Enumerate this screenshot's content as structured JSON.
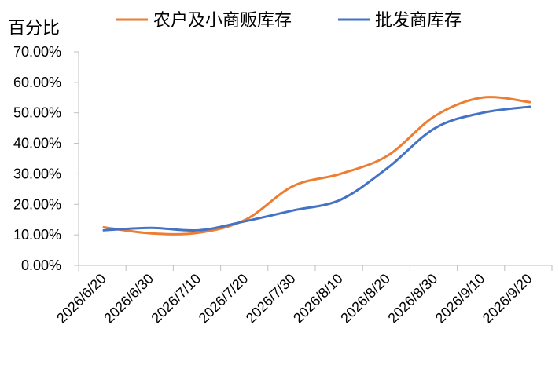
{
  "chart_data": {
    "type": "line",
    "ylabel": "百分比",
    "xlabel": "",
    "ylim": [
      0,
      0.7
    ],
    "yticks": [
      "0.00%",
      "10.00%",
      "20.00%",
      "30.00%",
      "40.00%",
      "50.00%",
      "60.00%",
      "70.00%"
    ],
    "categories": [
      "2026/6/20",
      "2026/6/30",
      "2026/7/10",
      "2026/7/20",
      "2026/7/30",
      "2026/8/10",
      "2026/8/20",
      "2026/8/30",
      "2026/9/10",
      "2026/9/20"
    ],
    "grid": false,
    "legend_position": "top",
    "series": [
      {
        "name": "农户及小商贩库存",
        "color": "#ED7D31",
        "values": [
          0.125,
          0.105,
          0.107,
          0.15,
          0.26,
          0.3,
          0.36,
          0.49,
          0.55,
          0.535
        ]
      },
      {
        "name": "批发商库存",
        "color": "#4472C4",
        "values": [
          0.115,
          0.123,
          0.115,
          0.145,
          0.18,
          0.215,
          0.32,
          0.45,
          0.5,
          0.52
        ]
      }
    ]
  }
}
